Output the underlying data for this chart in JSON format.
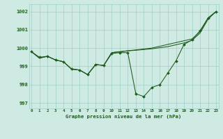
{
  "title": "Graphe pression niveau de la mer (hPa)",
  "x_labels": [
    "0",
    "1",
    "2",
    "3",
    "4",
    "5",
    "6",
    "7",
    "8",
    "9",
    "10",
    "11",
    "12",
    "13",
    "14",
    "15",
    "16",
    "17",
    "18",
    "19",
    "20",
    "21",
    "22",
    "23"
  ],
  "ylim": [
    996.7,
    1002.4
  ],
  "yticks": [
    997,
    998,
    999,
    1000,
    1001,
    1002
  ],
  "xlim": [
    -0.3,
    23.3
  ],
  "bg_color": "#ceeae3",
  "grid_color": "#9ecfc7",
  "line_color": "#1e5c1e",
  "line_main": [
    999.8,
    999.5,
    999.55,
    999.35,
    999.25,
    998.85,
    998.8,
    998.55,
    999.1,
    999.05,
    999.7,
    999.75,
    999.75,
    997.5,
    997.35,
    997.85,
    998.0,
    998.65,
    999.3,
    1000.2,
    1000.45,
    1000.95,
    1001.65,
    1002.0
  ],
  "line_smooth1": [
    999.8,
    999.45,
    999.55,
    999.35,
    999.25,
    998.85,
    998.8,
    998.55,
    999.1,
    999.05,
    999.75,
    999.8,
    999.85,
    999.9,
    999.95,
    1000.0,
    1000.1,
    1000.2,
    1000.3,
    1000.4,
    1000.5,
    1000.9,
    1001.65,
    1002.0
  ],
  "line_smooth2": [
    999.8,
    999.45,
    999.55,
    999.35,
    999.25,
    998.85,
    998.8,
    998.55,
    999.1,
    999.05,
    999.75,
    999.8,
    999.85,
    999.88,
    999.92,
    999.96,
    1000.02,
    1000.08,
    1000.18,
    1000.28,
    1000.42,
    1000.82,
    1001.58,
    1002.0
  ]
}
